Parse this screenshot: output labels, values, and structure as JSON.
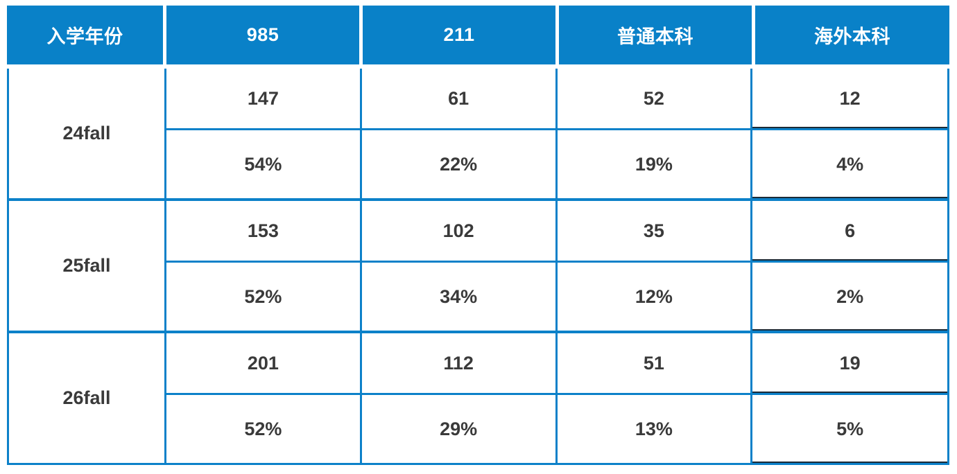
{
  "chart_data": {
    "type": "table",
    "columns": [
      "入学年份",
      "985",
      "211",
      "普通本科",
      "海外本科"
    ],
    "groups": [
      {
        "year": "24fall",
        "counts": [
          "147",
          "61",
          "52",
          "12"
        ],
        "percents": [
          "54%",
          "22%",
          "19%",
          "4%"
        ]
      },
      {
        "year": "25fall",
        "counts": [
          "153",
          "102",
          "35",
          "6"
        ],
        "percents": [
          "52%",
          "34%",
          "12%",
          "2%"
        ]
      },
      {
        "year": "26fall",
        "counts": [
          "201",
          "112",
          "51",
          "19"
        ],
        "percents": [
          "52%",
          "29%",
          "13%",
          "5%"
        ]
      }
    ],
    "colors": {
      "header_background": "#0981C8",
      "header_text": "#FFFFFF",
      "grid_border": "#0C81C9",
      "cell_text": "#3A3A3A",
      "last_column_edge": "#1B2A36"
    },
    "layout": {
      "grid": "on",
      "header_separated_by_white_gap": true,
      "first_column_rowspan": 2
    }
  }
}
